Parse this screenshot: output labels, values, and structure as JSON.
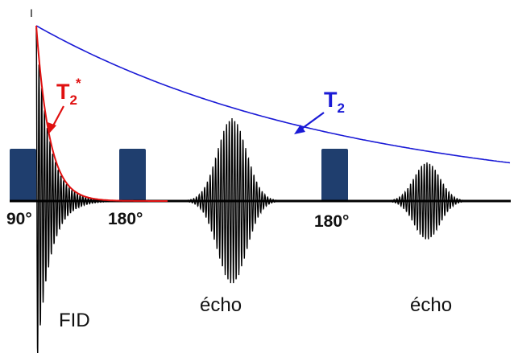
{
  "diagram": {
    "top_mark": "I",
    "labels": {
      "t2_star": {
        "base": "T",
        "sub": "2",
        "sup": "*"
      },
      "t2": {
        "base": "T",
        "sub": "2"
      },
      "pulse_90": "90°",
      "pulse_180_a": "180°",
      "pulse_180_b": "180°",
      "fid": "FID",
      "echo_a": "écho",
      "echo_b": "écho"
    },
    "colors": {
      "pulse": "#1f3e6e",
      "signal": "#000000",
      "t2_curve": "#1a1ad6",
      "t2_star_curve": "#e01010",
      "baseline": "#000000"
    }
  }
}
